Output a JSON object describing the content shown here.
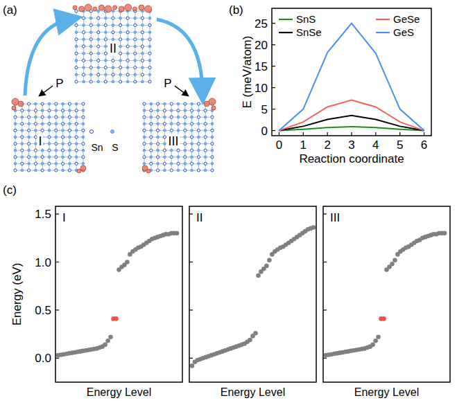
{
  "panel_labels": {
    "a": "(a)",
    "b": "(b)",
    "c": "(c)"
  },
  "diagram": {
    "structures": [
      {
        "label": "II"
      },
      {
        "label": "I"
      },
      {
        "label": "III"
      }
    ],
    "arrow_labels": [
      "P",
      "P"
    ],
    "atom_labels": [
      "Sn",
      "S"
    ]
  },
  "chart_data": [
    {
      "type": "line",
      "x_label": "Reaction coordinate",
      "y_label": "E (meV/atom)",
      "x": [
        0,
        1,
        2,
        3,
        4,
        5,
        6
      ],
      "xlim": [
        -0.3,
        6.3
      ],
      "xticks": [
        0,
        1,
        2,
        3,
        4,
        5,
        6
      ],
      "ylim": [
        -1.2,
        28.5
      ],
      "yticks": [
        0,
        5,
        10,
        15,
        20,
        25
      ],
      "legend": "top",
      "line_style": "solid",
      "series": [
        {
          "name": "SnS",
          "color": "#1f8a1f",
          "values": [
            0,
            0.3,
            0.7,
            0.9,
            0.7,
            0.3,
            0
          ]
        },
        {
          "name": "SnSe",
          "color": "#000000",
          "values": [
            0,
            1.0,
            2.6,
            3.5,
            2.6,
            1.0,
            0
          ]
        },
        {
          "name": "GeSe",
          "color": "#f2645a",
          "values": [
            0,
            2.0,
            5.5,
            7.1,
            5.5,
            2.0,
            0
          ]
        },
        {
          "name": "GeS",
          "color": "#4a8ff0",
          "values": [
            0,
            5.0,
            18.2,
            25.0,
            18.0,
            5.0,
            0
          ]
        }
      ]
    },
    {
      "type": "scatter",
      "title": "I",
      "x_label": "Energy Level",
      "y_label": "Energy (eV)",
      "xlim": [
        0,
        46
      ],
      "ylim": [
        -0.25,
        1.58
      ],
      "yticks": [
        {
          "value": 0,
          "label": "0.0"
        },
        {
          "value": 0.5,
          "label": "0.5"
        },
        {
          "value": 1.0,
          "label": "1.0"
        },
        {
          "value": 1.5,
          "label": "1.5"
        }
      ],
      "tick_labels": "y",
      "marker": "circle",
      "series": [
        {
          "color": "#808080",
          "x": [
            1,
            2,
            3,
            4,
            5,
            6,
            7,
            8,
            9,
            10,
            11,
            12,
            13,
            14,
            15,
            16,
            17,
            18,
            19,
            20,
            23,
            24,
            25,
            26,
            27,
            28,
            29,
            30,
            31,
            32,
            33,
            34,
            35,
            36,
            37,
            38,
            39,
            40,
            41,
            42,
            43,
            44
          ],
          "values": [
            0.03,
            0.035,
            0.04,
            0.045,
            0.05,
            0.055,
            0.06,
            0.065,
            0.07,
            0.075,
            0.08,
            0.085,
            0.09,
            0.095,
            0.1,
            0.11,
            0.12,
            0.14,
            0.18,
            0.22,
            0.92,
            0.95,
            0.97,
            1.0,
            1.08,
            1.11,
            1.13,
            1.15,
            1.16,
            1.18,
            1.2,
            1.22,
            1.24,
            1.25,
            1.26,
            1.27,
            1.28,
            1.29,
            1.29,
            1.3,
            1.3,
            1.3
          ]
        },
        {
          "color": "#f05050",
          "x": [
            21,
            22
          ],
          "values": [
            0.41,
            0.41
          ]
        }
      ]
    },
    {
      "type": "scatter",
      "title": "II",
      "x_label": "Energy Level",
      "xlim": [
        0,
        46
      ],
      "ylim": [
        -0.25,
        1.58
      ],
      "yticks": [
        0,
        0.5,
        1.0,
        1.5
      ],
      "tick_labels": false,
      "marker": "circle",
      "series": [
        {
          "color": "#808080",
          "x": [
            1,
            2,
            3,
            4,
            5,
            6,
            7,
            8,
            9,
            10,
            11,
            12,
            13,
            14,
            15,
            16,
            17,
            18,
            19,
            20,
            21,
            22,
            23,
            24,
            25,
            26,
            27,
            28,
            29,
            30,
            31,
            32,
            33,
            34,
            35,
            36,
            37,
            38,
            39,
            40,
            41,
            42,
            43,
            44,
            45
          ],
          "values": [
            -0.08,
            -0.04,
            -0.02,
            -0.01,
            0.0,
            0.01,
            0.02,
            0.03,
            0.04,
            0.05,
            0.06,
            0.07,
            0.08,
            0.09,
            0.1,
            0.11,
            0.12,
            0.13,
            0.14,
            0.15,
            0.17,
            0.19,
            0.23,
            0.26,
            0.86,
            0.9,
            0.93,
            0.96,
            1.02,
            1.08,
            1.11,
            1.13,
            1.15,
            1.16,
            1.18,
            1.2,
            1.22,
            1.24,
            1.26,
            1.28,
            1.3,
            1.32,
            1.34,
            1.35,
            1.36
          ]
        }
      ]
    },
    {
      "type": "scatter",
      "title": "III",
      "x_label": "Energy Level",
      "xlim": [
        0,
        46
      ],
      "ylim": [
        -0.25,
        1.58
      ],
      "yticks": [
        0,
        0.5,
        1.0,
        1.5
      ],
      "tick_labels": false,
      "marker": "circle",
      "series": [
        {
          "color": "#808080",
          "x": [
            1,
            2,
            3,
            4,
            5,
            6,
            7,
            8,
            9,
            10,
            11,
            12,
            13,
            14,
            15,
            16,
            17,
            18,
            19,
            20,
            23,
            24,
            25,
            26,
            27,
            28,
            29,
            30,
            31,
            32,
            33,
            34,
            35,
            36,
            37,
            38,
            39,
            40,
            41,
            42,
            43,
            44
          ],
          "values": [
            0.03,
            0.035,
            0.04,
            0.045,
            0.05,
            0.055,
            0.06,
            0.065,
            0.07,
            0.075,
            0.08,
            0.085,
            0.09,
            0.095,
            0.1,
            0.11,
            0.12,
            0.14,
            0.18,
            0.22,
            0.92,
            0.95,
            0.98,
            1.02,
            1.08,
            1.11,
            1.13,
            1.15,
            1.16,
            1.18,
            1.2,
            1.22,
            1.23,
            1.25,
            1.26,
            1.27,
            1.28,
            1.29,
            1.29,
            1.3,
            1.3,
            1.3
          ]
        },
        {
          "color": "#f05050",
          "x": [
            21,
            22
          ],
          "values": [
            0.41,
            0.41
          ]
        }
      ]
    }
  ]
}
